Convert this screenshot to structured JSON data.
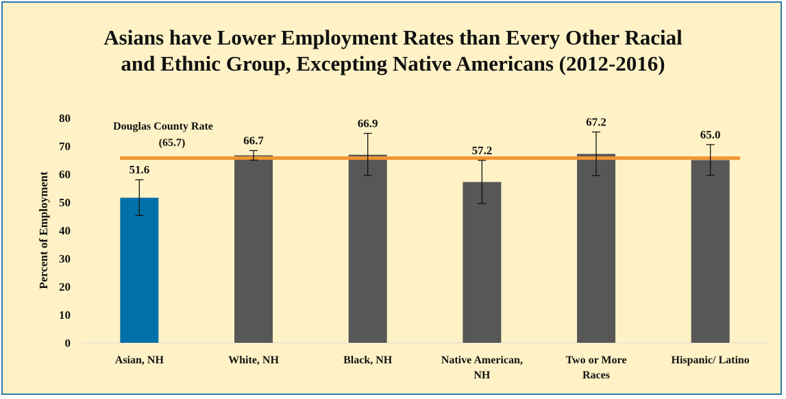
{
  "chart_data": {
    "type": "bar",
    "title_lines": [
      "Asians have Lower Employment Rates than Every Other Racial",
      "and Ethnic Group, Excepting Native Americans (2012-2016)"
    ],
    "ylabel": "Percent of Employment",
    "ylim": [
      0,
      80
    ],
    "yticks": [
      0,
      10,
      20,
      30,
      40,
      50,
      60,
      70,
      80
    ],
    "grid": false,
    "categories": [
      [
        "Asian, NH"
      ],
      [
        "White, NH"
      ],
      [
        "Black, NH"
      ],
      [
        "Native American,",
        "NH"
      ],
      [
        "Two or More",
        "Races"
      ],
      [
        "Hispanic/ Latino"
      ]
    ],
    "values": [
      51.6,
      66.7,
      66.9,
      57.2,
      67.2,
      65.0
    ],
    "value_labels": [
      "51.6",
      "66.7",
      "66.9",
      "57.2",
      "67.2",
      "65.0"
    ],
    "error_bars": [
      [
        45.3,
        58.0
      ],
      [
        65.0,
        68.4
      ],
      [
        59.5,
        74.5
      ],
      [
        49.6,
        64.9
      ],
      [
        59.5,
        75.0
      ],
      [
        59.6,
        70.5
      ]
    ],
    "bar_colors": [
      "#0070a8",
      "#575757",
      "#575757",
      "#575757",
      "#575757",
      "#575757"
    ],
    "reference_line": {
      "value": 65.7,
      "label_lines": [
        "Douglas County Rate",
        "(65.7)"
      ],
      "color": "#f2952e"
    }
  }
}
